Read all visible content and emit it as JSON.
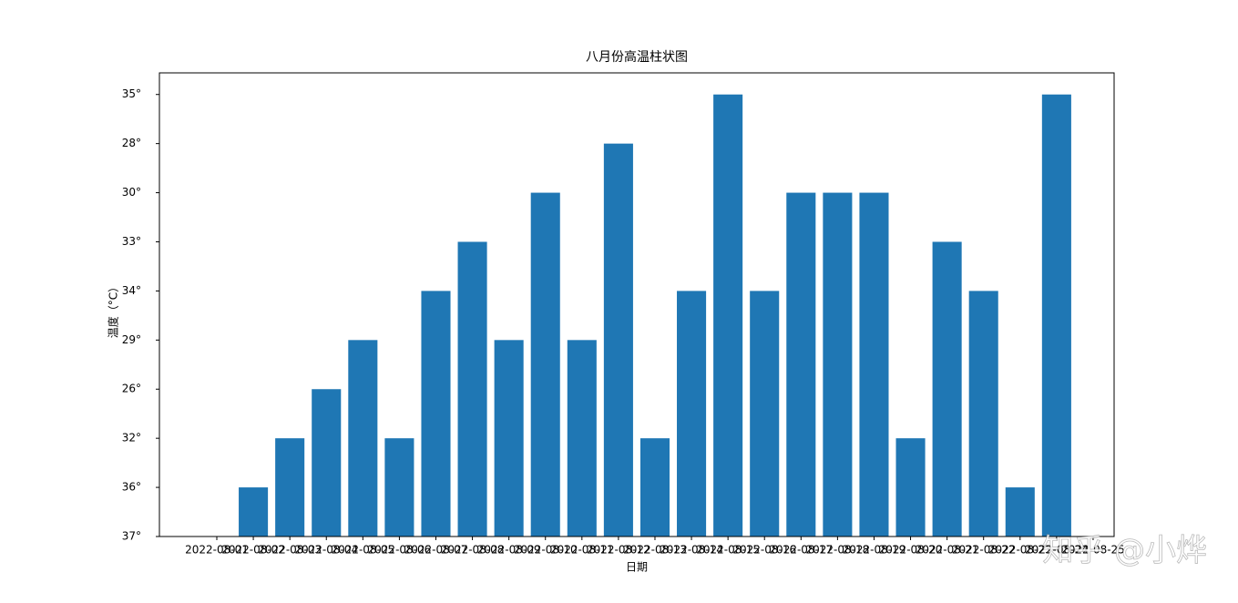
{
  "chart_data": {
    "type": "bar",
    "title": "八月份高温柱状图",
    "x_label": "日期",
    "y_label": "温度（°C）",
    "categories": [
      "2022-08-01",
      "2022-08-02",
      "2022-08-03",
      "2022-08-04",
      "2022-08-05",
      "2022-08-06",
      "2022-08-07",
      "2022-08-08",
      "2022-08-09",
      "2022-08-10",
      "2022-08-11",
      "2022-08-12",
      "2022-08-13",
      "2022-08-14",
      "2022-08-15",
      "2022-08-16",
      "2022-08-17",
      "2022-08-18",
      "2022-08-19",
      "2022-08-20",
      "2022-08-21",
      "2022-08-22",
      "2022-08-23",
      "2022-08-24",
      "2022-08-25"
    ],
    "values": [
      0,
      1,
      2,
      3,
      4,
      2,
      5,
      6,
      4,
      7,
      4,
      8,
      2,
      5,
      9,
      5,
      7,
      7,
      7,
      2,
      6,
      5,
      1,
      9,
      0
    ],
    "color": "#1f77b4",
    "ylim": [
      0,
      9.44
    ],
    "yticks": [
      {
        "value": 0,
        "label": "37°"
      },
      {
        "value": 1,
        "label": "36°"
      },
      {
        "value": 2,
        "label": "32°"
      },
      {
        "value": 3,
        "label": "26°"
      },
      {
        "value": 4,
        "label": "29°"
      },
      {
        "value": 5,
        "label": "34°"
      },
      {
        "value": 6,
        "label": "33°"
      },
      {
        "value": 7,
        "label": "30°"
      },
      {
        "value": 8,
        "label": "28°"
      },
      {
        "value": 9,
        "label": "35°"
      }
    ],
    "grid": false,
    "watermark": "知乎 @小烨"
  }
}
